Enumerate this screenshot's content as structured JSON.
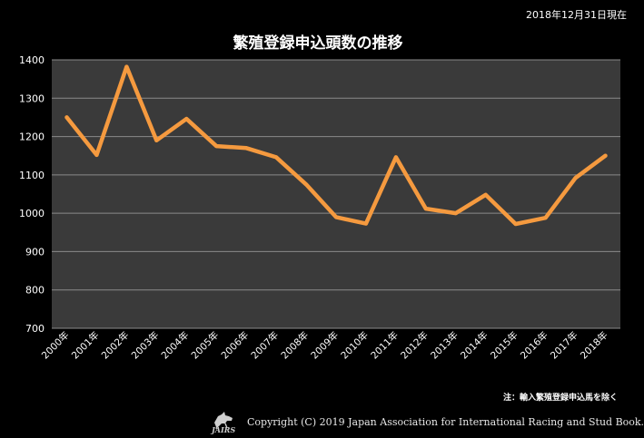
{
  "header": {
    "date_note": "2018年12月31日現在"
  },
  "chart_data": {
    "type": "line",
    "title": "繁殖登録申込頭数の推移",
    "x": [
      "2000年",
      "2001年",
      "2002年",
      "2003年",
      "2004年",
      "2005年",
      "2006年",
      "2007年",
      "2008年",
      "2009年",
      "2010年",
      "2011年",
      "2012年",
      "2013年",
      "2014年",
      "2015年",
      "2016年",
      "2017年",
      "2018年"
    ],
    "series": [
      {
        "values": [
          1250,
          1152,
          1382,
          1190,
          1246,
          1175,
          1170,
          1146,
          1075,
          990,
          973,
          1146,
          1012,
          1000,
          1048,
          972,
          988,
          1092,
          1150
        ]
      }
    ],
    "ylim": [
      700,
      1400
    ],
    "yticks": [
      700,
      800,
      900,
      1000,
      1100,
      1200,
      1300,
      1400
    ],
    "grid": true,
    "line_color": "#f59a3f",
    "plot_bg": "#3a3a3a"
  },
  "footnote": "注：輸入繁殖登録申込馬を除く",
  "footer": {
    "logo_text": "JAIRS",
    "copyright": "Copyright (C) 2019 Japan Association for International Racing and Stud Book."
  }
}
